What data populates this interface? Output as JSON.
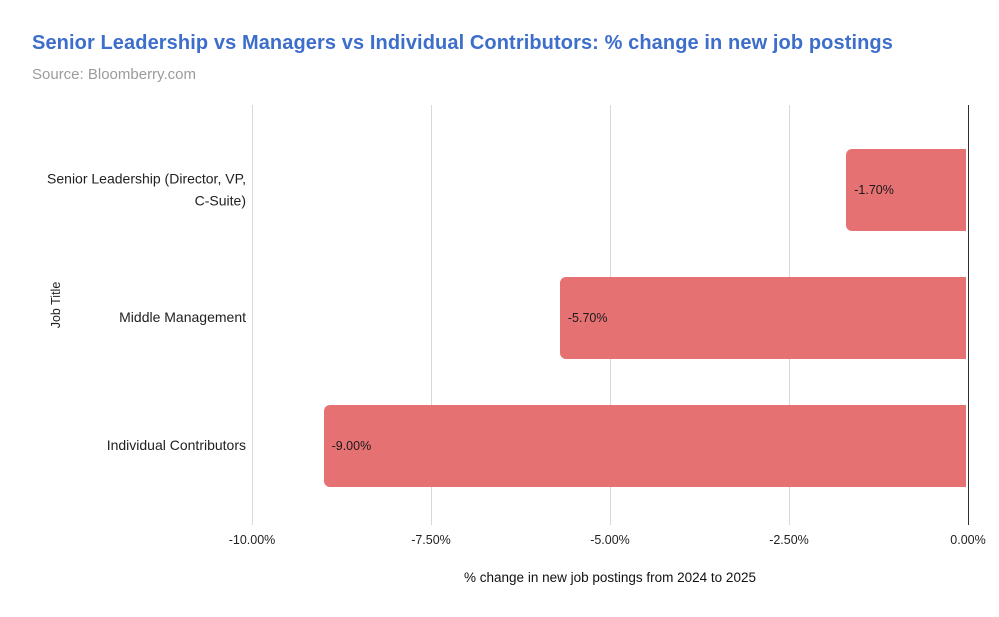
{
  "header": {
    "title": "Senior Leadership vs Managers vs Individual Contributors: % change in new job postings",
    "subtitle": "Source: Bloomberry.com"
  },
  "colors": {
    "title_blue": "#3d6ecb",
    "subtitle_gray": "#9b9b9b",
    "bar_fill": "#e57173",
    "gridline": "#d9d9d9",
    "zero_axis_line": "#2f2f2f",
    "background": "#ffffff"
  },
  "chart_data": {
    "type": "bar",
    "orientation": "horizontal",
    "title": "Senior Leadership vs Managers vs Individual Contributors: % change in new job postings",
    "subtitle": "Source: Bloomberry.com",
    "categories": [
      "Senior Leadership (Director, VP, C-Suite)",
      "Middle Management",
      "Individual Contributors"
    ],
    "values": [
      -1.7,
      -5.7,
      -9.0
    ],
    "value_labels": [
      "-1.70%",
      "-5.70%",
      "-9.00%"
    ],
    "xlabel": "% change in new job postings from 2024 to 2025",
    "ylabel": "Job Title",
    "xlim": [
      -10,
      0
    ],
    "x_ticks": [
      -10,
      -7.5,
      -5,
      -2.5,
      0
    ],
    "x_tick_labels": [
      "-10.00%",
      "-7.50%",
      "-5.00%",
      "-2.50%",
      "0.00%"
    ],
    "grid": "vertical-gridlines-on",
    "legend": "none",
    "bar_label_position": "inside-left"
  }
}
